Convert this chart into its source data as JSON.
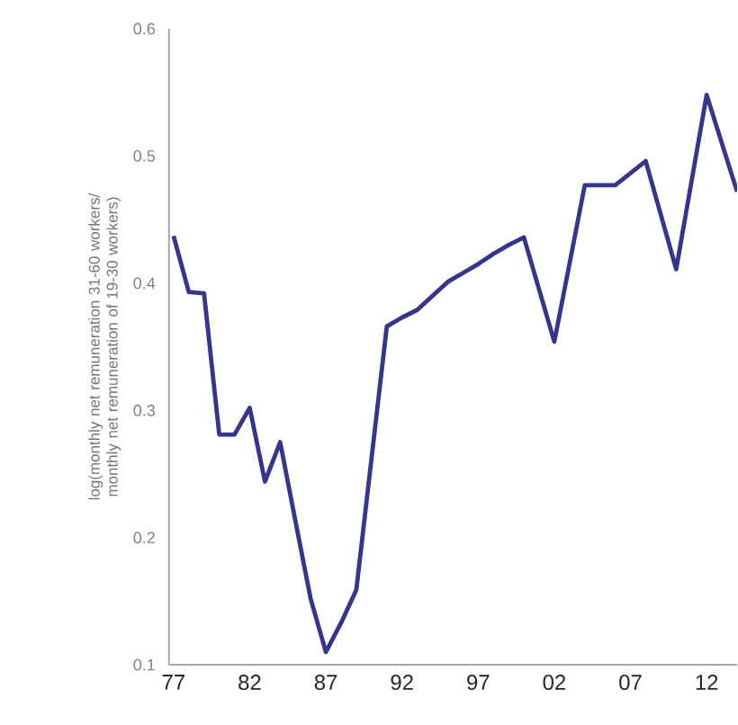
{
  "chart_data": {
    "type": "line",
    "ylabel": "log(monthly net remuneration 31-60 workers/ monthly net remuneration of 19-30 workers)",
    "x": [
      1977,
      1978,
      1979,
      1980,
      1981,
      1982,
      1983,
      1984,
      1985,
      1986,
      1987,
      1988,
      1989,
      1991,
      1992,
      1993,
      1994,
      1995,
      1996,
      1997,
      1998,
      1999,
      2000,
      2002,
      2004,
      2005,
      2006,
      2008,
      2010,
      2012,
      2014
    ],
    "series": [
      {
        "color": "#34358c",
        "values": [
          0.437,
          0.393,
          0.392,
          0.281,
          0.281,
          0.302,
          0.244,
          0.275,
          0.213,
          0.152,
          0.11,
          0.133,
          0.159,
          0.366,
          0.373,
          0.379,
          0.39,
          0.401,
          0.408,
          0.415,
          0.423,
          0.43,
          0.436,
          0.354,
          0.477,
          0.477,
          0.477,
          0.496,
          0.411,
          0.548,
          0.472
        ]
      }
    ],
    "xlim": [
      1976.7,
      2014
    ],
    "xticks": [
      {
        "value": 1977,
        "label": "77"
      },
      {
        "value": 1982,
        "label": "82"
      },
      {
        "value": 1987,
        "label": "87"
      },
      {
        "value": 1992,
        "label": "92"
      },
      {
        "value": 1997,
        "label": "97"
      },
      {
        "value": 2002,
        "label": "02"
      },
      {
        "value": 2007,
        "label": "07"
      },
      {
        "value": 2012,
        "label": "12"
      }
    ],
    "ylim": [
      0.1,
      0.6
    ],
    "yticks": [
      0.1,
      0.2,
      0.3,
      0.4,
      0.5,
      0.6
    ],
    "grid": false,
    "marker": "none",
    "line_style": "solid"
  }
}
